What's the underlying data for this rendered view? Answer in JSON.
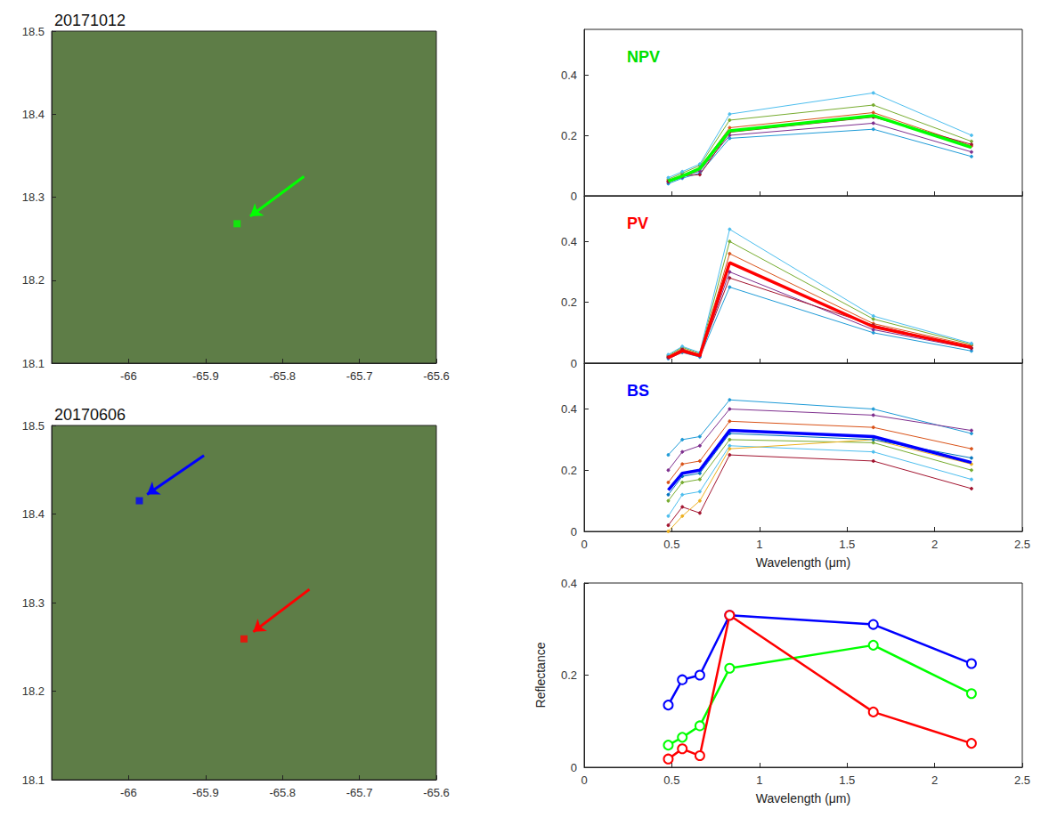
{
  "chart_data": [
    {
      "type": "scatter",
      "title": "20171012",
      "xlim": [
        -66.1,
        -65.6
      ],
      "xticks": [
        -66,
        -65.9,
        -65.8,
        -65.7,
        -65.6
      ],
      "ylim": [
        18.1,
        18.5
      ],
      "yticks": [
        18.1,
        18.2,
        18.3,
        18.4,
        18.5
      ],
      "series": [
        {
          "color": "#00ff00",
          "marker": "square",
          "x": [
            -65.859
          ],
          "values": [
            18.268
          ],
          "arrow_from": [
            -65.772,
            18.325
          ],
          "arrow_to": [
            -65.842,
            18.277
          ]
        }
      ]
    },
    {
      "type": "scatter",
      "title": "20170606",
      "xlim": [
        -66.1,
        -65.6
      ],
      "xticks": [
        -66,
        -65.9,
        -65.8,
        -65.7,
        -65.6
      ],
      "ylim": [
        18.1,
        18.5
      ],
      "yticks": [
        18.1,
        18.2,
        18.3,
        18.4,
        18.5
      ],
      "series": [
        {
          "color": "#0000ff",
          "marker": "square",
          "x": [
            -65.986
          ],
          "values": [
            18.415
          ],
          "arrow_from": [
            -65.902,
            18.466
          ],
          "arrow_to": [
            -65.976,
            18.422
          ]
        },
        {
          "color": "#ff0000",
          "marker": "square",
          "x": [
            -65.85
          ],
          "values": [
            18.259
          ],
          "arrow_from": [
            -65.765,
            18.315
          ],
          "arrow_to": [
            -65.838,
            18.267
          ]
        }
      ]
    },
    {
      "type": "line",
      "annotation": {
        "text": "NPV",
        "color": "#00e000"
      },
      "x": [
        0.48,
        0.56,
        0.66,
        0.83,
        1.65,
        2.21
      ],
      "xlim": [
        0,
        2.5
      ],
      "xticks": [
        0,
        0.5,
        1,
        1.5,
        2,
        2.5
      ],
      "ylim": [
        0,
        0.55
      ],
      "yticks": [
        0,
        0.2,
        0.4
      ],
      "tick_labels": "y",
      "marker": "dot",
      "series": [
        {
          "color": "#1f9bd7",
          "line_style": "solid",
          "values": [
            0.04,
            0.058,
            0.075,
            0.19,
            0.22,
            0.13
          ]
        },
        {
          "color": "#7e2f8e",
          "line_style": "solid",
          "values": [
            0.045,
            0.062,
            0.082,
            0.2,
            0.24,
            0.145
          ]
        },
        {
          "color": "#d95319",
          "line_style": "solid",
          "values": [
            0.05,
            0.068,
            0.092,
            0.225,
            0.275,
            0.165
          ]
        },
        {
          "color": "#77ac30",
          "line_style": "solid",
          "values": [
            0.055,
            0.075,
            0.1,
            0.25,
            0.3,
            0.18
          ]
        },
        {
          "color": "#4dbeee",
          "line_style": "solid",
          "values": [
            0.06,
            0.08,
            0.105,
            0.27,
            0.34,
            0.2
          ]
        },
        {
          "color": "#a2142f",
          "line_style": "solid",
          "values": [
            0.048,
            0.066,
            0.07,
            0.21,
            0.26,
            0.17
          ]
        },
        {
          "color": "#00ff00",
          "line_style": "bold",
          "values": [
            0.048,
            0.065,
            0.09,
            0.215,
            0.265,
            0.16
          ]
        }
      ]
    },
    {
      "type": "line",
      "annotation": {
        "text": "PV",
        "color": "#ff0000"
      },
      "x": [
        0.48,
        0.56,
        0.66,
        0.83,
        1.65,
        2.21
      ],
      "xlim": [
        0,
        2.5
      ],
      "xticks": [
        0,
        0.5,
        1,
        1.5,
        2,
        2.5
      ],
      "ylim": [
        0,
        0.55
      ],
      "yticks": [
        0,
        0.2,
        0.4
      ],
      "tick_labels": "y",
      "marker": "dot",
      "series": [
        {
          "color": "#1f9bd7",
          "line_style": "solid",
          "values": [
            0.015,
            0.035,
            0.02,
            0.25,
            0.1,
            0.04
          ]
        },
        {
          "color": "#7e2f8e",
          "line_style": "solid",
          "values": [
            0.018,
            0.04,
            0.024,
            0.3,
            0.11,
            0.048
          ]
        },
        {
          "color": "#d95319",
          "line_style": "solid",
          "values": [
            0.022,
            0.048,
            0.028,
            0.36,
            0.13,
            0.058
          ]
        },
        {
          "color": "#77ac30",
          "line_style": "solid",
          "values": [
            0.025,
            0.052,
            0.032,
            0.4,
            0.145,
            0.062
          ]
        },
        {
          "color": "#4dbeee",
          "line_style": "solid",
          "values": [
            0.028,
            0.055,
            0.035,
            0.44,
            0.155,
            0.065
          ]
        },
        {
          "color": "#a2142f",
          "line_style": "solid",
          "values": [
            0.02,
            0.045,
            0.026,
            0.28,
            0.125,
            0.05
          ]
        },
        {
          "color": "#ff0000",
          "line_style": "bold",
          "values": [
            0.018,
            0.04,
            0.025,
            0.33,
            0.12,
            0.052
          ]
        }
      ]
    },
    {
      "type": "line",
      "annotation": {
        "text": "BS",
        "color": "#0000ff"
      },
      "x": [
        0.48,
        0.56,
        0.66,
        0.83,
        1.65,
        2.21
      ],
      "xlim": [
        0,
        2.5
      ],
      "xticks": [
        0,
        0.5,
        1,
        1.5,
        2,
        2.5
      ],
      "ylim": [
        0,
        0.55
      ],
      "yticks": [
        0,
        0.2,
        0.4
      ],
      "xlabel": "Wavelength (μm)",
      "marker": "dot",
      "series": [
        {
          "color": "#1f9bd7",
          "line_style": "solid",
          "values": [
            0.25,
            0.3,
            0.31,
            0.43,
            0.4,
            0.32
          ]
        },
        {
          "color": "#7e2f8e",
          "line_style": "solid",
          "values": [
            0.2,
            0.26,
            0.28,
            0.4,
            0.38,
            0.33
          ]
        },
        {
          "color": "#d95319",
          "line_style": "solid",
          "values": [
            0.16,
            0.22,
            0.23,
            0.36,
            0.34,
            0.27
          ]
        },
        {
          "color": "#77ac30",
          "line_style": "solid",
          "values": [
            0.1,
            0.16,
            0.17,
            0.3,
            0.29,
            0.2
          ]
        },
        {
          "color": "#4dbeee",
          "line_style": "solid",
          "values": [
            0.05,
            0.12,
            0.13,
            0.28,
            0.26,
            0.17
          ]
        },
        {
          "color": "#a2142f",
          "line_style": "solid",
          "values": [
            0.02,
            0.08,
            0.06,
            0.25,
            0.23,
            0.14
          ]
        },
        {
          "color": "#edb120",
          "line_style": "solid",
          "values": [
            0.0,
            0.05,
            0.1,
            0.27,
            0.3,
            0.22
          ]
        },
        {
          "color": "#0072bd",
          "line_style": "solid",
          "values": [
            0.12,
            0.18,
            0.19,
            0.32,
            0.3,
            0.24
          ]
        },
        {
          "color": "#0000ff",
          "line_style": "bold",
          "values": [
            0.135,
            0.19,
            0.2,
            0.33,
            0.31,
            0.225
          ]
        }
      ]
    },
    {
      "type": "line",
      "x": [
        0.48,
        0.56,
        0.66,
        0.83,
        1.65,
        2.21
      ],
      "xlim": [
        0,
        2.5
      ],
      "xticks": [
        0,
        0.5,
        1,
        1.5,
        2,
        2.5
      ],
      "ylim": [
        0,
        0.4
      ],
      "yticks": [
        0,
        0.2,
        0.4
      ],
      "xlabel": "Wavelength (μm)",
      "ylabel": "Reflectance",
      "marker": "circle",
      "series": [
        {
          "color": "#0000ff",
          "line_style": "solid",
          "values": [
            0.135,
            0.19,
            0.2,
            0.33,
            0.31,
            0.225
          ]
        },
        {
          "color": "#00ff00",
          "line_style": "solid",
          "values": [
            0.048,
            0.065,
            0.09,
            0.215,
            0.265,
            0.16
          ]
        },
        {
          "color": "#ff0000",
          "line_style": "solid",
          "values": [
            0.018,
            0.04,
            0.025,
            0.33,
            0.12,
            0.052
          ]
        }
      ]
    }
  ]
}
